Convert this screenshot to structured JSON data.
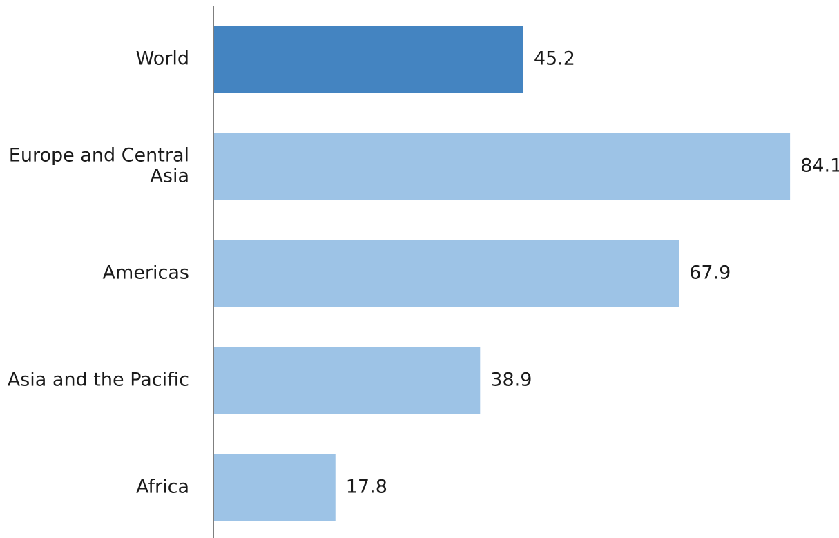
{
  "chart_data": {
    "type": "bar",
    "orientation": "horizontal",
    "categories": [
      "World",
      "Europe and Central Asia",
      "Americas",
      "Asia and the Pacific",
      "Africa"
    ],
    "values": [
      45.2,
      84.1,
      67.9,
      38.9,
      17.8
    ],
    "value_labels": [
      "45.2",
      "84.1",
      "67.9",
      "38.9",
      "17.8"
    ],
    "title": "",
    "xlabel": "",
    "ylabel": "",
    "xlim": [
      0,
      100
    ],
    "grid": false,
    "legend": "none",
    "highlight_category": "World",
    "colors": {
      "highlight": "#4484c1",
      "default": "#9dc3e6",
      "axis": "#7f7f7f",
      "text": "#1a1a1a"
    }
  }
}
